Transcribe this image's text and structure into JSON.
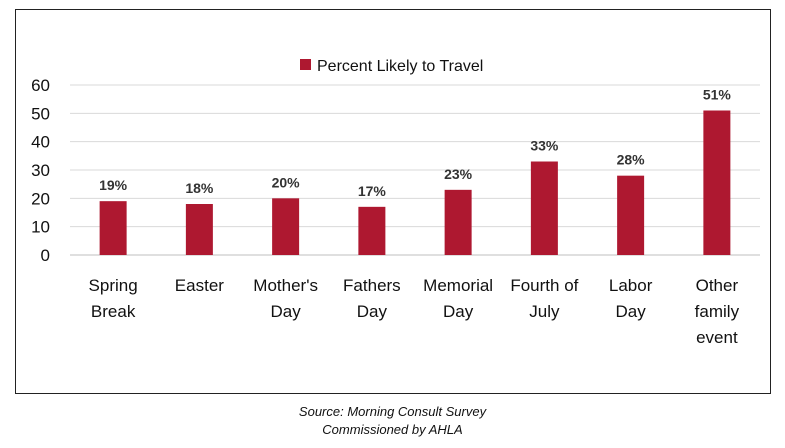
{
  "chart_data": {
    "type": "bar",
    "categories": [
      [
        "Spring",
        "Break"
      ],
      [
        "Easter"
      ],
      [
        "Mother's",
        "Day"
      ],
      [
        "Fathers",
        "Day"
      ],
      [
        "Memorial",
        "Day"
      ],
      [
        "Fourth of",
        "July"
      ],
      [
        "Labor",
        "Day"
      ],
      [
        "Other",
        "family",
        "event"
      ]
    ],
    "series": [
      {
        "name": "Percent Likely to Travel",
        "values": [
          19,
          18,
          20,
          17,
          23,
          33,
          28,
          51
        ],
        "data_labels": [
          "19%",
          "18%",
          "20%",
          "17%",
          "23%",
          "33%",
          "28%",
          "51%"
        ],
        "color": "#ae1830"
      }
    ],
    "ylim": [
      0,
      60
    ],
    "yticks": [
      0,
      10,
      20,
      30,
      40,
      50,
      60
    ],
    "grid": true,
    "legend_position": "top-center"
  },
  "source": {
    "line1": "Source: Morning Consult Survey",
    "line2": "Commissioned by AHLA"
  },
  "colors": {
    "bar": "#ae1830",
    "grid": "#d9d9d9",
    "axis": "#bfbfbf"
  }
}
